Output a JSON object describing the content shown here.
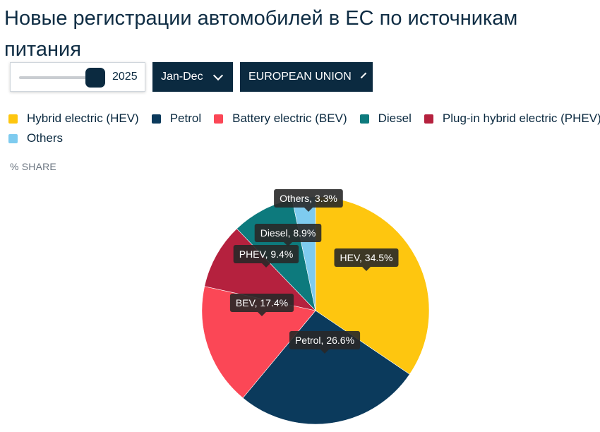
{
  "page": {
    "title": "Новые регистрации автомобилей в ЕС по источникам питания"
  },
  "controls": {
    "year_slider": {
      "value": "2025"
    },
    "period_dropdown": {
      "label": "Jan-Dec"
    },
    "region_dropdown": {
      "label": "EUROPEAN UNION"
    }
  },
  "unit_label": "% SHARE",
  "colors": {
    "hev": "#fec60f",
    "petrol": "#0b3a5c",
    "bev": "#fb4756",
    "diesel": "#0d7a7d",
    "phev": "#b5213e",
    "others": "#7ecbef"
  },
  "legend": [
    {
      "key": "hev",
      "label": "Hybrid electric (HEV)"
    },
    {
      "key": "petrol",
      "label": "Petrol"
    },
    {
      "key": "bev",
      "label": "Battery electric (BEV)"
    },
    {
      "key": "diesel",
      "label": "Diesel"
    },
    {
      "key": "phev",
      "label": "Plug-in hybrid electric (PHEV)"
    },
    {
      "key": "others",
      "label": "Others"
    }
  ],
  "chart_data": {
    "type": "pie",
    "start_angle_deg": 0,
    "direction": "clockwise",
    "unit": "%",
    "slices": [
      {
        "key": "hev",
        "label": "HEV, 34.5%",
        "value": 34.5
      },
      {
        "key": "petrol",
        "label": "Petrol, 26.6%",
        "value": 26.6
      },
      {
        "key": "bev",
        "label": "BEV, 17.4%",
        "value": 17.4
      },
      {
        "key": "phev",
        "label": "PHEV, 9.4%",
        "value": 9.4
      },
      {
        "key": "diesel",
        "label": "Diesel, 8.9%",
        "value": 8.9
      },
      {
        "key": "others",
        "label": "Others, 3.3%",
        "value": 3.3
      }
    ]
  }
}
